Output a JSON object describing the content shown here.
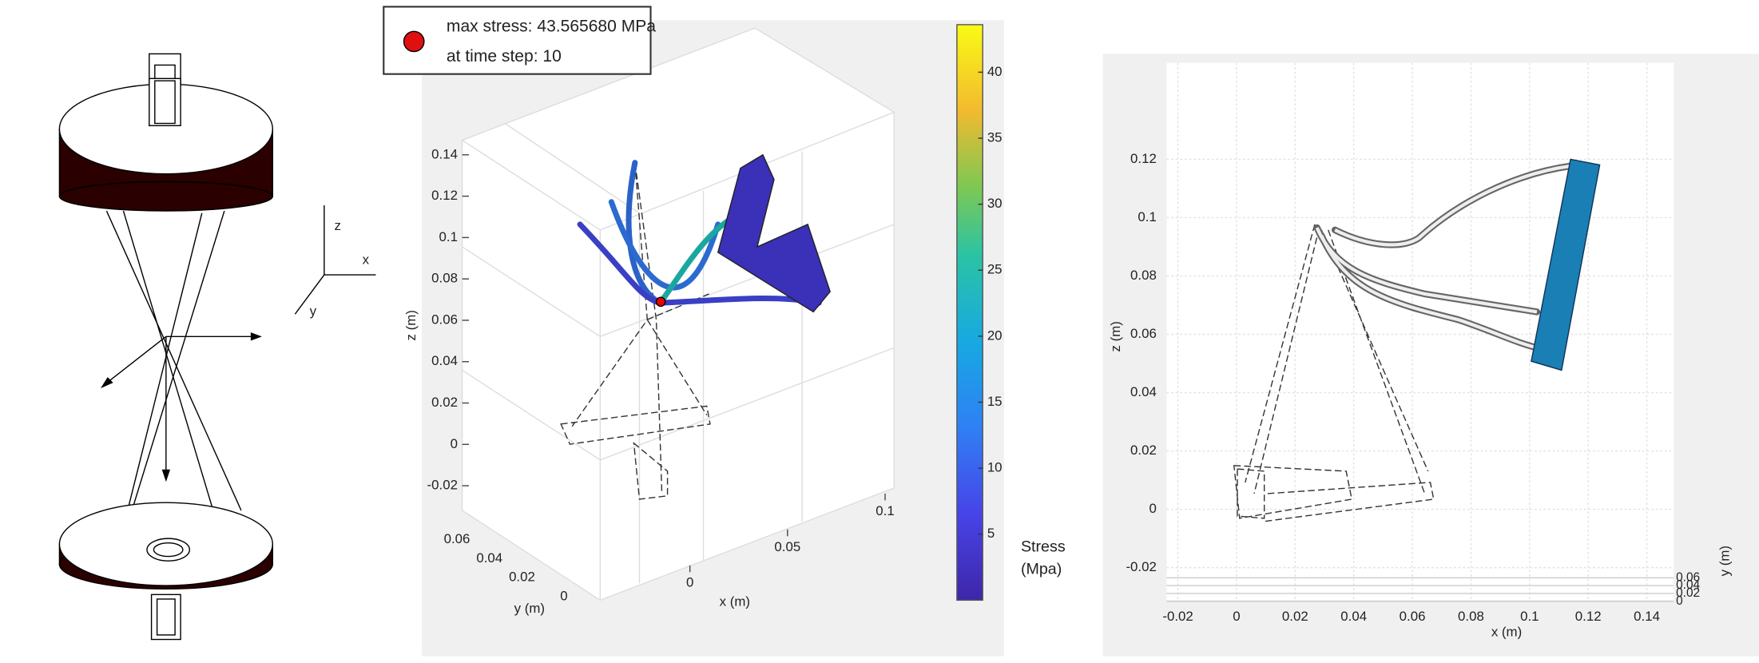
{
  "left_diagram": {
    "axis_labels": [
      "z",
      "x",
      "y"
    ]
  },
  "panel_3d": {
    "legend": {
      "line1": "max stress: 43.565680 MPa",
      "line2": "at time step: 10"
    },
    "zlabel": "z (m)",
    "xlabel": "x (m)",
    "ylabel": "y (m)",
    "zlim": [
      -0.02,
      0.14
    ],
    "zticks": [
      -0.02,
      0,
      0.02,
      0.04,
      0.06,
      0.08,
      0.1,
      0.12,
      0.14
    ],
    "xticks": [
      0,
      0.05,
      0.1
    ],
    "yticks": [
      0,
      0.02,
      0.04,
      0.06
    ],
    "colorbar": {
      "clim": [
        0,
        43.6
      ],
      "ticks": [
        5,
        10,
        15,
        20,
        25,
        30,
        35,
        40
      ],
      "label_line1": "Stress",
      "label_line2": "(Mpa)"
    }
  },
  "panel_2d": {
    "zlabel": "z (m)",
    "xlabel": "x (m)",
    "ylabel": "y (m)",
    "zlim": [
      -0.02,
      0.12
    ],
    "zticks": [
      -0.02,
      0,
      0.02,
      0.04,
      0.06,
      0.08,
      0.1,
      0.12
    ],
    "xlim": [
      -0.02,
      0.14
    ],
    "xticks": [
      -0.02,
      0,
      0.02,
      0.04,
      0.06,
      0.08,
      0.1,
      0.12,
      0.14
    ],
    "yticks": [
      0,
      0.02,
      0.04,
      0.06
    ]
  }
}
